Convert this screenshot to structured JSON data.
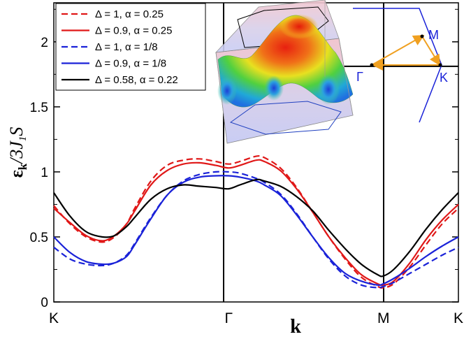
{
  "chart_data": {
    "type": "line",
    "title": "",
    "xlabel": "k",
    "ylabel_main": "ε",
    "ylabel_sub": "k",
    "ylabel_tail": "/3J",
    "ylabel_sub2": "1",
    "ylabel_end": "S",
    "ylim": [
      0,
      2.3
    ],
    "xlim": [
      0,
      1
    ],
    "x_ticks": [
      {
        "label": "K",
        "value": 0
      },
      {
        "label": "Γ",
        "value": 0.4323
      },
      {
        "label": "M",
        "value": 0.8148
      },
      {
        "label": "K",
        "value": 1.0
      }
    ],
    "y_ticks": [
      {
        "label": "0",
        "value": 0
      },
      {
        "label": "0.5",
        "value": 0.5
      },
      {
        "label": "1",
        "value": 1.0
      },
      {
        "label": "1.5",
        "value": 1.5
      },
      {
        "label": "2",
        "value": 2.0
      }
    ],
    "legend_position": "top-left",
    "series": [
      {
        "name": "Δ = 1, α = 0.25",
        "color": "#e01818",
        "dash": "dashed",
        "x": [
          0,
          0.04,
          0.08,
          0.12,
          0.15,
          0.18,
          0.2,
          0.24,
          0.28,
          0.32,
          0.36,
          0.4,
          0.4323,
          0.46,
          0.5,
          0.52,
          0.56,
          0.6,
          0.64,
          0.68,
          0.72,
          0.76,
          0.8,
          0.8148,
          0.84,
          0.88,
          0.92,
          0.96,
          1.0
        ],
        "y": [
          0.74,
          0.6,
          0.5,
          0.46,
          0.5,
          0.6,
          0.72,
          0.93,
          1.05,
          1.09,
          1.1,
          1.08,
          1.06,
          1.08,
          1.12,
          1.11,
          1.03,
          0.88,
          0.69,
          0.5,
          0.33,
          0.19,
          0.12,
          0.11,
          0.14,
          0.27,
          0.44,
          0.6,
          0.72
        ]
      },
      {
        "name": "Δ = 0.9, α = 0.25",
        "color": "#e01818",
        "dash": "solid",
        "x": [
          0,
          0.04,
          0.08,
          0.12,
          0.15,
          0.18,
          0.2,
          0.24,
          0.28,
          0.32,
          0.36,
          0.4,
          0.4323,
          0.46,
          0.5,
          0.52,
          0.56,
          0.6,
          0.64,
          0.68,
          0.72,
          0.76,
          0.8,
          0.8148,
          0.84,
          0.88,
          0.92,
          0.96,
          1.0
        ],
        "y": [
          0.72,
          0.61,
          0.51,
          0.47,
          0.51,
          0.6,
          0.7,
          0.9,
          1.01,
          1.06,
          1.07,
          1.05,
          1.03,
          1.05,
          1.09,
          1.08,
          1.01,
          0.87,
          0.69,
          0.5,
          0.34,
          0.21,
          0.14,
          0.13,
          0.16,
          0.3,
          0.48,
          0.63,
          0.75
        ]
      },
      {
        "name": "Δ = 1, α = 1/8",
        "color": "#1a22d8",
        "dash": "dashed",
        "x": [
          0,
          0.04,
          0.08,
          0.12,
          0.15,
          0.18,
          0.2,
          0.24,
          0.28,
          0.32,
          0.36,
          0.4,
          0.4323,
          0.46,
          0.5,
          0.52,
          0.56,
          0.6,
          0.64,
          0.68,
          0.72,
          0.76,
          0.8,
          0.8148,
          0.84,
          0.88,
          0.92,
          0.96,
          1.0
        ],
        "y": [
          0.42,
          0.33,
          0.29,
          0.28,
          0.3,
          0.36,
          0.45,
          0.65,
          0.82,
          0.93,
          0.98,
          1.0,
          1.0,
          0.99,
          0.95,
          0.92,
          0.83,
          0.68,
          0.5,
          0.33,
          0.2,
          0.13,
          0.11,
          0.12,
          0.15,
          0.22,
          0.29,
          0.36,
          0.42
        ]
      },
      {
        "name": "Δ = 0.9, α = 1/8",
        "color": "#1a22d8",
        "dash": "solid",
        "x": [
          0,
          0.04,
          0.08,
          0.12,
          0.15,
          0.18,
          0.2,
          0.24,
          0.28,
          0.32,
          0.36,
          0.4,
          0.4323,
          0.46,
          0.5,
          0.52,
          0.56,
          0.6,
          0.64,
          0.68,
          0.72,
          0.76,
          0.8,
          0.8148,
          0.84,
          0.88,
          0.92,
          0.96,
          1.0
        ],
        "y": [
          0.5,
          0.38,
          0.31,
          0.29,
          0.3,
          0.35,
          0.44,
          0.64,
          0.82,
          0.92,
          0.96,
          0.97,
          0.97,
          0.96,
          0.93,
          0.9,
          0.82,
          0.67,
          0.5,
          0.34,
          0.22,
          0.16,
          0.13,
          0.14,
          0.18,
          0.26,
          0.35,
          0.43,
          0.5
        ]
      },
      {
        "name": "Δ = 0.58, α = 0.22",
        "color": "#000000",
        "dash": "solid",
        "x": [
          0,
          0.04,
          0.08,
          0.12,
          0.15,
          0.18,
          0.2,
          0.24,
          0.28,
          0.32,
          0.36,
          0.4,
          0.4323,
          0.46,
          0.5,
          0.52,
          0.56,
          0.6,
          0.64,
          0.68,
          0.72,
          0.76,
          0.8,
          0.8148,
          0.84,
          0.88,
          0.92,
          0.96,
          1.0
        ],
        "y": [
          0.84,
          0.66,
          0.54,
          0.5,
          0.51,
          0.58,
          0.65,
          0.79,
          0.87,
          0.9,
          0.89,
          0.88,
          0.87,
          0.9,
          0.94,
          0.93,
          0.89,
          0.81,
          0.7,
          0.55,
          0.41,
          0.29,
          0.21,
          0.2,
          0.25,
          0.39,
          0.56,
          0.71,
          0.84
        ]
      }
    ],
    "inset_bz": {
      "labels": {
        "gamma": "Γ",
        "m": "M",
        "k": "K"
      },
      "hex_color": "#1a22d8",
      "arrow_color": "#f0a020"
    }
  }
}
